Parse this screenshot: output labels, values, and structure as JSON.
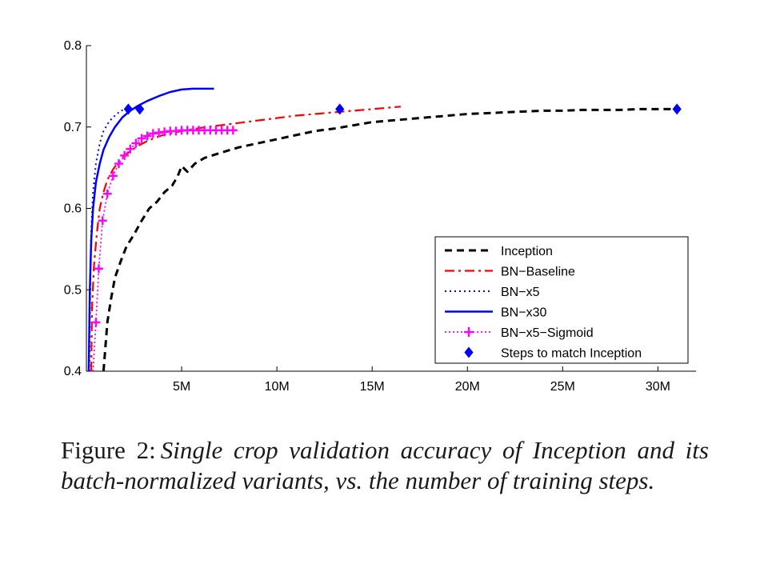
{
  "chart_data": {
    "type": "line",
    "title": "",
    "xlabel": "",
    "ylabel": "",
    "xlim": [
      0,
      32000000
    ],
    "ylim": [
      0.4,
      0.8
    ],
    "x_ticks": [
      {
        "value": 5000000,
        "label": "5M"
      },
      {
        "value": 10000000,
        "label": "10M"
      },
      {
        "value": 15000000,
        "label": "15M"
      },
      {
        "value": 20000000,
        "label": "20M"
      },
      {
        "value": 25000000,
        "label": "25M"
      },
      {
        "value": 30000000,
        "label": "30M"
      }
    ],
    "y_ticks": [
      {
        "value": 0.4,
        "label": "0.4"
      },
      {
        "value": 0.5,
        "label": "0.5"
      },
      {
        "value": 0.6,
        "label": "0.6"
      },
      {
        "value": 0.7,
        "label": "0.7"
      },
      {
        "value": 0.8,
        "label": "0.8"
      }
    ],
    "grid": false,
    "legend_position": "lower-right",
    "series": [
      {
        "name": "Inception",
        "color": "#000000",
        "style": "dashed",
        "x": [
          900000,
          1000000,
          1100000,
          1300000,
          1500000,
          1800000,
          2100000,
          2500000,
          2900000,
          3300000,
          3700000,
          4100000,
          4500000,
          4800000,
          5000000,
          5300000,
          5700000,
          6200000,
          7000000,
          8000000,
          9000000,
          10000000,
          11000000,
          12000000,
          13000000,
          14000000,
          15000000,
          16000000,
          17000000,
          18000000,
          19000000,
          20000000,
          21000000,
          22000000,
          23000000,
          24000000,
          25000000,
          26000000,
          27000000,
          28000000,
          29000000,
          30000000,
          31000000
        ],
        "values": [
          0.4,
          0.43,
          0.46,
          0.49,
          0.515,
          0.535,
          0.553,
          0.568,
          0.585,
          0.6,
          0.608,
          0.62,
          0.628,
          0.64,
          0.652,
          0.645,
          0.655,
          0.662,
          0.668,
          0.675,
          0.68,
          0.685,
          0.69,
          0.695,
          0.698,
          0.702,
          0.706,
          0.708,
          0.71,
          0.712,
          0.714,
          0.716,
          0.717,
          0.718,
          0.719,
          0.72,
          0.72,
          0.721,
          0.721,
          0.721,
          0.722,
          0.722,
          0.722
        ]
      },
      {
        "name": "BN−Baseline",
        "color": "#ff0000",
        "style": "dashdot",
        "x": [
          250000,
          300000,
          400000,
          550000,
          700000,
          900000,
          1100000,
          1400000,
          1700000,
          2000000,
          2400000,
          2800000,
          3300000,
          4000000,
          5000000,
          6000000,
          7000000,
          8000000,
          9000000,
          10000000,
          11000000,
          12000000,
          13000000,
          14000000,
          15000000,
          16500000
        ],
        "values": [
          0.4,
          0.48,
          0.53,
          0.57,
          0.6,
          0.62,
          0.635,
          0.648,
          0.658,
          0.665,
          0.672,
          0.678,
          0.684,
          0.69,
          0.695,
          0.699,
          0.702,
          0.705,
          0.708,
          0.711,
          0.714,
          0.716,
          0.718,
          0.72,
          0.722,
          0.725
        ]
      },
      {
        "name": "BN−x5",
        "color": "#0000ff",
        "style": "dotted",
        "x": [
          150000,
          200000,
          250000,
          350000,
          500000,
          700000,
          900000,
          1200000,
          1500000,
          1800000,
          2100000
        ],
        "values": [
          0.4,
          0.5,
          0.57,
          0.62,
          0.655,
          0.68,
          0.695,
          0.707,
          0.714,
          0.72,
          0.722
        ]
      },
      {
        "name": "BN−x30",
        "color": "#0000ff",
        "style": "solid",
        "x": [
          120000,
          180000,
          250000,
          350000,
          500000,
          700000,
          900000,
          1200000,
          1500000,
          1900000,
          2300000,
          2700000,
          3200000,
          3800000,
          4400000,
          5000000,
          5600000,
          6200000,
          6700000
        ],
        "values": [
          0.4,
          0.5,
          0.56,
          0.6,
          0.632,
          0.655,
          0.672,
          0.688,
          0.7,
          0.712,
          0.72,
          0.726,
          0.732,
          0.738,
          0.743,
          0.746,
          0.747,
          0.747,
          0.747
        ]
      },
      {
        "name": "BN−x5−Sigmoid",
        "color": "#ff00ff",
        "style": "dotted-plus",
        "x": [
          350000,
          500000,
          650000,
          850000,
          1100000,
          1400000,
          1700000,
          2000000,
          2300000,
          2600000,
          2900000,
          3200000,
          3500000,
          3800000,
          4100000,
          4400000,
          4700000,
          5000000,
          5300000,
          5600000,
          5900000,
          6200000,
          6500000,
          6800000,
          7100000,
          7400000,
          7700000
        ],
        "values": [
          0.4,
          0.46,
          0.526,
          0.585,
          0.618,
          0.64,
          0.655,
          0.665,
          0.673,
          0.68,
          0.686,
          0.689,
          0.692,
          0.693,
          0.694,
          0.695,
          0.695,
          0.696,
          0.696,
          0.696,
          0.696,
          0.696,
          0.696,
          0.696,
          0.696,
          0.696,
          0.696
        ]
      }
    ],
    "markers": {
      "name": "Steps to match Inception",
      "color": "#0000ff",
      "shape": "diamond",
      "x": [
        2200000,
        2800000,
        13300000,
        31000000
      ],
      "values": [
        0.722,
        0.722,
        0.722,
        0.722
      ]
    }
  },
  "caption": {
    "prefix": "Figure 2:",
    "text": "Single crop validation accuracy of Inception and its batch-normalized variants, vs.  the number of training steps."
  }
}
